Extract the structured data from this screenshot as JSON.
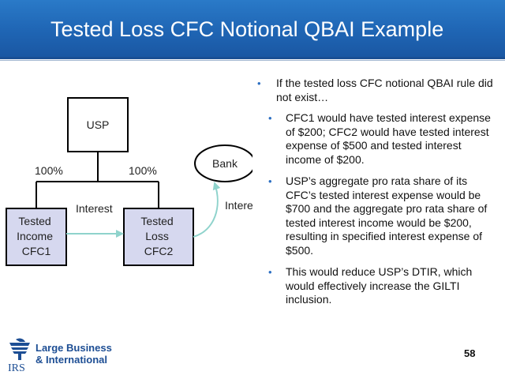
{
  "slide": {
    "title": "Tested Loss CFC Notional QBAI Example",
    "page_number": "58"
  },
  "diagram": {
    "usp_label": "USP",
    "pct_left": "100%",
    "pct_right": "100%",
    "bank_label": "Bank",
    "interest_mid": "Interest",
    "interest_right": "Interest",
    "cfc1_lines": [
      "Tested",
      "Income",
      "CFC1"
    ],
    "cfc2_lines": [
      "Tested",
      "Loss",
      "CFC2"
    ]
  },
  "bullets": {
    "main": "If the tested loss CFC notional QBAI rule did not exist…",
    "sub": [
      "CFC1 would have tested interest expense of $200; CFC2 would have tested interest expense of $500 and tested interest income of $200.",
      "USP’s aggregate pro rata share of its CFC’s tested interest expense would be $700 and the aggregate pro rata share of tested interest income would be $200, resulting in specified interest expense of $500.",
      "This would reduce USP’s DTIR, which would effectively increase the GILTI inclusion."
    ]
  },
  "footer": {
    "logo_line1": "Large Business",
    "logo_line2": "& International",
    "irs_text": "IRS"
  },
  "colors": {
    "header_blue": "#1f65b4",
    "box_fill": "#d6d8ef",
    "arrow_teal": "#8fd3cc",
    "bullet_blue": "#2c6fc2",
    "logo_blue": "#1d4e94"
  }
}
